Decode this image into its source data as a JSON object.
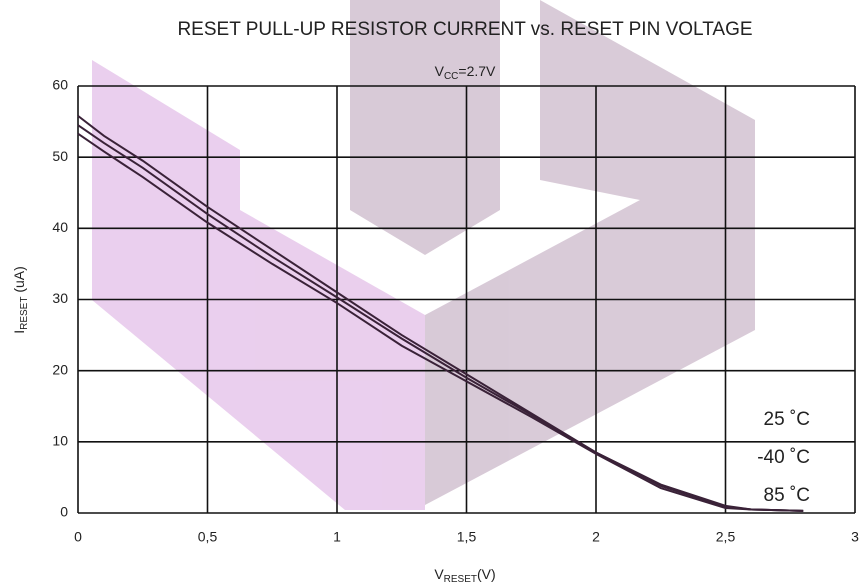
{
  "chart_data": {
    "type": "line",
    "title": "RESET PULL-UP RESISTOR CURRENT vs. RESET PIN VOLTAGE",
    "subtitle": {
      "main": "V",
      "sub": "CC",
      "rest": "=2.7V"
    },
    "y_label": {
      "main": "I",
      "sub": "RESET",
      "rest": " (uA)"
    },
    "x_label": {
      "main": "V",
      "sub": "RESET",
      "rest": "(V)"
    },
    "x": [
      0,
      0.1,
      0.25,
      0.5,
      0.75,
      1,
      1.25,
      1.5,
      1.75,
      2,
      2.25,
      2.5,
      2.6,
      2.8
    ],
    "series": [
      {
        "name": "25 ˚C",
        "color": "#3a2238",
        "values": [
          55.8,
          53,
          49.5,
          43,
          37,
          31,
          25,
          19.5,
          14,
          8.5,
          4,
          1,
          0.5,
          0.3
        ]
      },
      {
        "name": "-40 ˚C",
        "color": "#3a2238",
        "values": [
          54.5,
          52,
          48.5,
          42,
          36,
          30.3,
          24.5,
          19,
          13.8,
          8.5,
          3.8,
          0.9,
          0.5,
          0.3
        ]
      },
      {
        "name": "85 ˚C",
        "color": "#3a2238",
        "values": [
          53.3,
          50.8,
          47.2,
          40.8,
          35,
          29.5,
          23.5,
          18.5,
          13.5,
          8.3,
          3.5,
          0.7,
          0.5,
          0.3
        ]
      }
    ],
    "xlim": [
      0,
      3
    ],
    "xticks": [
      0,
      {
        "value": 0.5,
        "label": "0,5"
      },
      1,
      {
        "value": 1.5,
        "label": "1,5"
      },
      2,
      {
        "value": 2.5,
        "label": "2,5"
      },
      3
    ],
    "ylim": [
      0,
      60
    ],
    "yticks": [
      0,
      10,
      20,
      30,
      40,
      50,
      60
    ],
    "grid": true
  }
}
